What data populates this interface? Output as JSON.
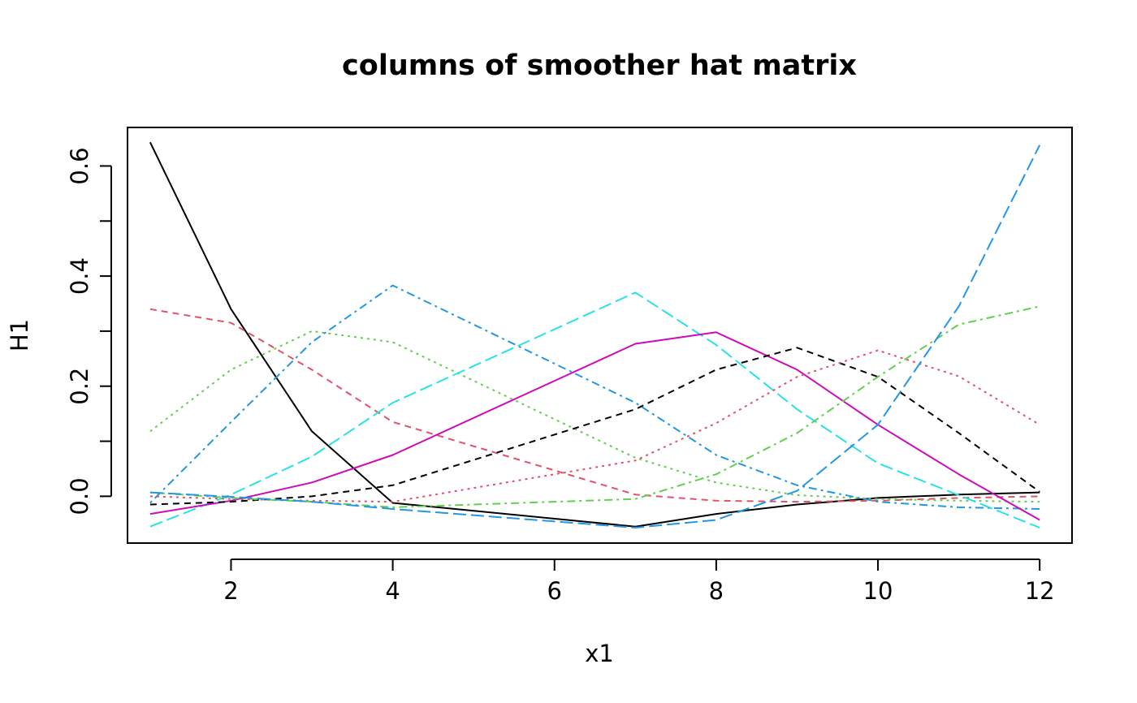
{
  "chart_data": {
    "type": "line",
    "title": "columns of smoother hat matrix",
    "xlabel": "x1",
    "ylabel": "H1",
    "xlim": [
      0.72,
      12.4
    ],
    "ylim": [
      -0.085,
      0.67
    ],
    "x_ticks": [
      2,
      4,
      6,
      8,
      10,
      12
    ],
    "y_ticks": [
      0.0,
      0.2,
      0.4,
      0.6
    ],
    "y_minor_ticks": [
      0.1,
      0.3,
      0.5
    ],
    "x_tick_labels": [
      "2",
      "4",
      "6",
      "8",
      "10",
      "12"
    ],
    "y_tick_labels": [
      "0.0",
      "0.2",
      "0.4",
      "0.6"
    ],
    "grid": false,
    "legend": "none",
    "x": [
      1,
      2,
      3,
      4,
      7,
      8,
      9,
      10,
      11,
      12
    ],
    "series": [
      {
        "color": "#000000",
        "dash": "solid",
        "values": [
          0.643,
          0.34,
          0.118,
          -0.012,
          -0.055,
          -0.032,
          -0.015,
          -0.003,
          0.003,
          0.007
        ]
      },
      {
        "color": "#DF536B",
        "dash": "dashed",
        "values": [
          0.34,
          0.315,
          0.23,
          0.135,
          0.003,
          -0.008,
          -0.01,
          -0.008,
          -0.003,
          0.0
        ]
      },
      {
        "color": "#61D04F",
        "dash": "dotted",
        "values": [
          0.118,
          0.23,
          0.3,
          0.28,
          0.07,
          0.025,
          0.002,
          -0.005,
          -0.008,
          -0.01
        ]
      },
      {
        "color": "#2297E6",
        "dash": "dotdash",
        "values": [
          -0.012,
          0.135,
          0.28,
          0.383,
          0.17,
          0.075,
          0.02,
          -0.01,
          -0.02,
          -0.023
        ]
      },
      {
        "color": "#28E2E5",
        "dash": "longdash",
        "values": [
          -0.055,
          0.003,
          0.072,
          0.17,
          0.37,
          0.275,
          0.158,
          0.06,
          0.002,
          -0.057
        ]
      },
      {
        "color": "#CD0BBC",
        "dash": "solid",
        "values": [
          -0.032,
          -0.008,
          0.025,
          0.075,
          0.277,
          0.298,
          0.23,
          0.13,
          0.04,
          -0.043
        ]
      },
      {
        "color": "#000000",
        "dash": "dashed",
        "values": [
          -0.015,
          -0.01,
          0.0,
          0.02,
          0.158,
          0.23,
          0.27,
          0.217,
          0.115,
          0.008
        ]
      },
      {
        "color": "#DF536B",
        "dash": "dotted",
        "values": [
          0.0,
          -0.005,
          -0.008,
          -0.01,
          0.065,
          0.133,
          0.217,
          0.265,
          0.218,
          0.13
        ]
      },
      {
        "color": "#61D04F",
        "dash": "dotdash",
        "values": [
          0.007,
          -0.003,
          -0.01,
          -0.02,
          -0.005,
          0.04,
          0.115,
          0.217,
          0.312,
          0.345
        ]
      },
      {
        "color": "#2297E6",
        "dash": "longdash",
        "values": [
          0.007,
          -0.001,
          -0.01,
          -0.023,
          -0.057,
          -0.043,
          0.01,
          0.13,
          0.345,
          0.638
        ]
      }
    ]
  }
}
